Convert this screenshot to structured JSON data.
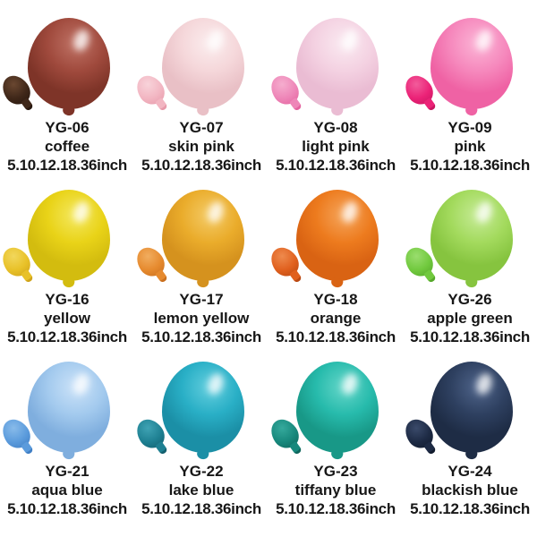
{
  "catalog": {
    "products": [
      {
        "code": "YG-06",
        "name": "coffee",
        "sizes": "5.10.12.18.36inch",
        "colors": {
          "main": "#A04A3D",
          "light": "#BF7265",
          "dark": "#7E3428",
          "small": "#3F2719",
          "small_light": "#6A4730",
          "small_dark": "#26160D"
        }
      },
      {
        "code": "YG-07",
        "name": "skin pink",
        "sizes": "5.10.12.18.36inch",
        "colors": {
          "main": "#F5D7DA",
          "light": "#FBEDEE",
          "dark": "#E9C0C6",
          "small": "#F2B6C2",
          "small_light": "#F8D3DA",
          "small_dark": "#E799AA"
        }
      },
      {
        "code": "YG-08",
        "name": "light pink",
        "sizes": "5.10.12.18.36inch",
        "colors": {
          "main": "#F4D2E2",
          "light": "#FAEAF1",
          "dark": "#EABCD3",
          "small": "#EE86B8",
          "small_light": "#F5ADCE",
          "small_dark": "#E4639F"
        }
      },
      {
        "code": "YG-09",
        "name": "pink",
        "sizes": "5.10.12.18.36inch",
        "colors": {
          "main": "#F689BD",
          "light": "#FBB5D6",
          "dark": "#EF62A4",
          "small": "#EB2277",
          "small_light": "#F25C9B",
          "small_dark": "#C91560"
        }
      },
      {
        "code": "YG-16",
        "name": "yellow",
        "sizes": "5.10.12.18.36inch",
        "colors": {
          "main": "#E9D318",
          "light": "#F4E85F",
          "dark": "#D3BC0F",
          "small": "#E8C128",
          "small_light": "#F2D75C",
          "small_dark": "#CFA31A"
        }
      },
      {
        "code": "YG-17",
        "name": "lemon yellow",
        "sizes": "5.10.12.18.36inch",
        "colors": {
          "main": "#EAAC2B",
          "light": "#F4CB67",
          "dark": "#D5921E",
          "small": "#E68A2E",
          "small_light": "#F1AD5F",
          "small_dark": "#C96F1E"
        }
      },
      {
        "code": "YG-18",
        "name": "orange",
        "sizes": "5.10.12.18.36inch",
        "colors": {
          "main": "#ED7B1E",
          "light": "#F5A55B",
          "dark": "#D96313",
          "small": "#E0601E",
          "small_light": "#EE8A4D",
          "small_dark": "#B94812"
        }
      },
      {
        "code": "YG-26",
        "name": "apple green",
        "sizes": "5.10.12.18.36inch",
        "colors": {
          "main": "#A3DA5D",
          "light": "#C6EB97",
          "dark": "#86C43F",
          "small": "#71C93E",
          "small_light": "#9ADD6E",
          "small_dark": "#55A82A"
        }
      },
      {
        "code": "YG-21",
        "name": "aqua blue",
        "sizes": "5.10.12.18.36inch",
        "colors": {
          "main": "#A3CAEE",
          "light": "#CBE2F8",
          "dark": "#7FAEDE",
          "small": "#5B9BDC",
          "small_light": "#88BBEA",
          "small_dark": "#3F7EC4"
        }
      },
      {
        "code": "YG-22",
        "name": "lake blue",
        "sizes": "5.10.12.18.36inch",
        "colors": {
          "main": "#29AFC6",
          "light": "#63CEDE",
          "dark": "#1B8FA6",
          "small": "#1E8092",
          "small_light": "#3FA3B4",
          "small_dark": "#135F6E"
        }
      },
      {
        "code": "YG-23",
        "name": "tiffany blue",
        "sizes": "5.10.12.18.36inch",
        "colors": {
          "main": "#27BBAC",
          "light": "#65D6C9",
          "dark": "#189887",
          "small": "#17887C",
          "small_light": "#35A99C",
          "small_dark": "#0E665C"
        }
      },
      {
        "code": "YG-24",
        "name": "blackish blue",
        "sizes": "5.10.12.18.36inch",
        "colors": {
          "main": "#2E4060",
          "light": "#4F648A",
          "dark": "#1E2C45",
          "small": "#1D2A44",
          "small_light": "#3A4A6A",
          "small_dark": "#111A2C"
        }
      }
    ]
  }
}
